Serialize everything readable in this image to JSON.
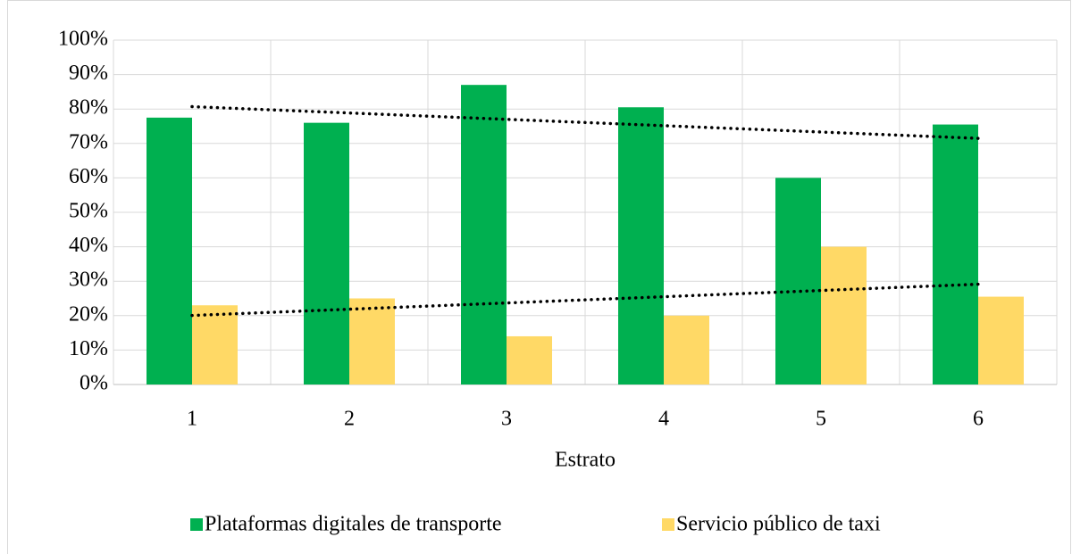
{
  "chart_data": {
    "type": "bar",
    "xlabel": "Estrato",
    "categories": [
      "1",
      "2",
      "3",
      "4",
      "5",
      "6"
    ],
    "series": [
      {
        "name": "Plataformas digitales de transporte",
        "color": "#00b050",
        "values": [
          77.5,
          76,
          87,
          80.5,
          60,
          75.5
        ],
        "trendline": "linear"
      },
      {
        "name": "Servicio público de taxi",
        "color": "#ffd966",
        "values": [
          23,
          25,
          14,
          20,
          40,
          25.5
        ],
        "trendline": "linear"
      }
    ],
    "ylim": [
      0,
      100
    ],
    "yticks": [
      {
        "value": 0,
        "label": "0%"
      },
      {
        "value": 10,
        "label": "10%"
      },
      {
        "value": 20,
        "label": "20%"
      },
      {
        "value": 30,
        "label": "30%"
      },
      {
        "value": 40,
        "label": "40%"
      },
      {
        "value": 50,
        "label": "50%"
      },
      {
        "value": 60,
        "label": "60%"
      },
      {
        "value": 70,
        "label": "70%"
      },
      {
        "value": 80,
        "label": "80%"
      },
      {
        "value": 90,
        "label": "90%"
      },
      {
        "value": 100,
        "label": "100%"
      }
    ],
    "grid": true,
    "legend": "bottom"
  }
}
